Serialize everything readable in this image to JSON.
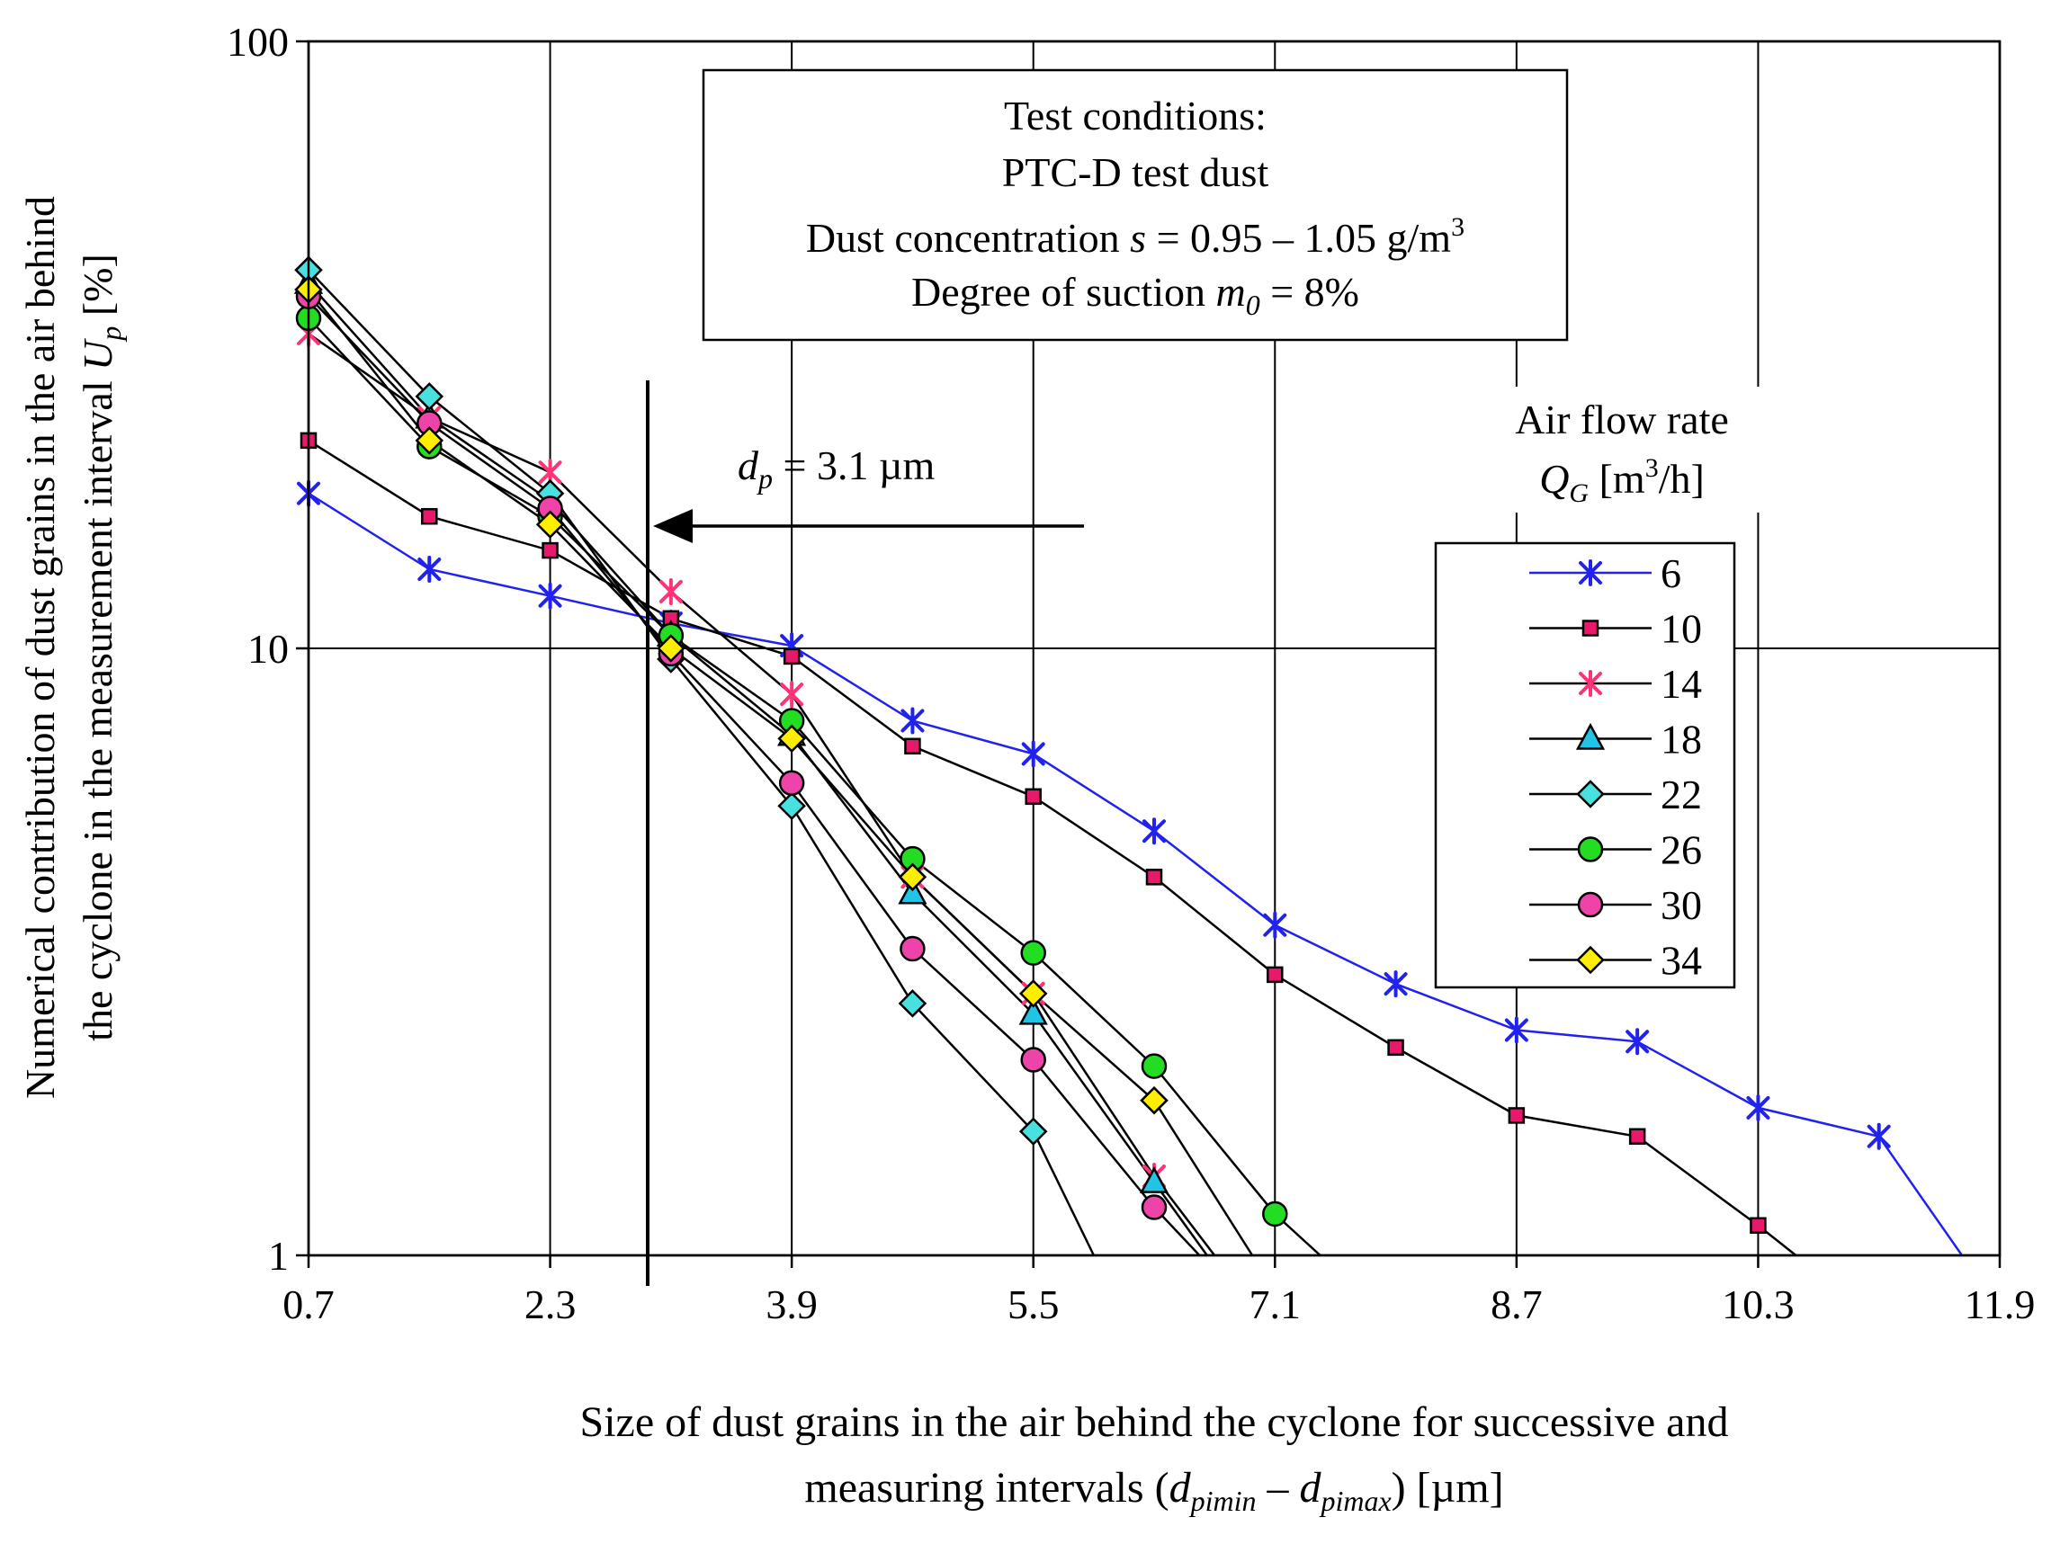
{
  "chart_data": {
    "type": "line",
    "y_scale": "log",
    "ylim": [
      1,
      100
    ],
    "xlim": [
      0.7,
      11.9
    ],
    "x_ticks": [
      "0.7",
      "2.3",
      "3.9",
      "5.5",
      "7.1",
      "8.7",
      "10.3",
      "11.9"
    ],
    "x_tick_values": [
      0.7,
      2.3,
      3.9,
      5.5,
      7.1,
      8.7,
      10.3,
      11.9
    ],
    "y_ticks": [
      "1",
      "10",
      "100"
    ],
    "y_tick_values": [
      1,
      10,
      100
    ],
    "ylabel_line1": "Numerical contribution of dust grains in the air behind",
    "ylabel_line2_prefix": "the cyclone in the measurement interval ",
    "ylabel_var": "U",
    "ylabel_sub": "p",
    "ylabel_unit": " [%]",
    "xlabel_line1": "Size of dust grains in the air behind the cyclone for successive and",
    "xlabel_line2_prefix": "measuring intervals (",
    "xlabel_var1": "d",
    "xlabel_sub1": "pimin",
    "xlabel_dash": " – ",
    "xlabel_var2": "d",
    "xlabel_sub2": "pimax",
    "xlabel_suffix": ") [µm]",
    "conditions": {
      "line1": "Test conditions:",
      "line2": "PTC-D test dust",
      "line3_prefix": "Dust concentration ",
      "line3_var": "s",
      "line3_value": " = 0.95 – 1.05 g/m",
      "line3_sup": "3",
      "line4_prefix": "Degree of suction ",
      "line4_var": "m",
      "line4_sub": "0",
      "line4_value": " = 8%"
    },
    "dp_marker": {
      "x": 3.1,
      "label_var": "d",
      "label_sub": "p",
      "label_value": " = 3.1 µm"
    },
    "legend_title_line1": "Air flow rate",
    "legend_title_var": "Q",
    "legend_title_sub": "G",
    "legend_title_unit": " [m",
    "legend_title_sup": "3",
    "legend_title_end": "/h]",
    "series": [
      {
        "name": "6",
        "marker": "star",
        "color": "#2222ee",
        "line_color": "#2222ee",
        "x": [
          0.7,
          1.5,
          2.3,
          3.1,
          3.9,
          4.7,
          5.5,
          6.3,
          7.1,
          7.9,
          8.7,
          9.5,
          10.3,
          11.1,
          11.65
        ],
        "y": [
          18,
          13.5,
          12.2,
          11.0,
          10.1,
          7.6,
          6.7,
          5.0,
          3.5,
          2.8,
          2.35,
          2.25,
          1.75,
          1.57,
          1.0
        ]
      },
      {
        "name": "10",
        "marker": "square",
        "color": "#e8196b",
        "line_color": "#000000",
        "x": [
          0.7,
          1.5,
          2.3,
          3.1,
          3.9,
          4.7,
          5.5,
          6.3,
          7.1,
          7.9,
          8.7,
          9.5,
          10.3,
          10.55
        ],
        "y": [
          22,
          16.5,
          14.5,
          11.2,
          9.7,
          6.9,
          5.7,
          4.2,
          2.9,
          2.2,
          1.7,
          1.57,
          1.12,
          1.0
        ]
      },
      {
        "name": "14",
        "marker": "star",
        "color": "#ff3377",
        "line_color": "#000000",
        "x": [
          0.7,
          1.5,
          2.3,
          3.1,
          3.9,
          4.7,
          5.5,
          6.3,
          6.7
        ],
        "y": [
          33,
          24,
          19.5,
          12.4,
          8.4,
          4.2,
          2.7,
          1.35,
          1.0
        ]
      },
      {
        "name": "18",
        "marker": "triangle",
        "color": "#22c4e6",
        "line_color": "#000000",
        "x": [
          0.7,
          1.5,
          2.3,
          3.1,
          3.9,
          4.7,
          5.5,
          6.3,
          6.65
        ],
        "y": [
          40,
          24,
          17.5,
          10.5,
          7.2,
          3.95,
          2.5,
          1.32,
          1.0
        ]
      },
      {
        "name": "22",
        "marker": "diamond",
        "color": "#49e0e0",
        "line_color": "#000000",
        "x": [
          0.7,
          1.5,
          2.3,
          3.1,
          3.9,
          4.7,
          5.5,
          5.9
        ],
        "y": [
          42,
          26,
          18,
          9.6,
          5.5,
          2.6,
          1.6,
          1.0
        ]
      },
      {
        "name": "26",
        "marker": "circle",
        "color": "#22dd22",
        "line_color": "#000000",
        "x": [
          0.7,
          1.5,
          2.3,
          3.1,
          3.9,
          4.7,
          5.5,
          6.3,
          7.1,
          7.4
        ],
        "y": [
          35,
          21.5,
          16.5,
          10.5,
          7.6,
          4.5,
          3.15,
          2.05,
          1.17,
          1.0
        ]
      },
      {
        "name": "30",
        "marker": "circle",
        "color": "#ee44aa",
        "line_color": "#000000",
        "x": [
          0.7,
          1.5,
          2.3,
          3.1,
          3.9,
          4.7,
          5.5,
          6.3,
          6.6
        ],
        "y": [
          38,
          23.5,
          17,
          9.8,
          6.0,
          3.2,
          2.1,
          1.2,
          1.0
        ]
      },
      {
        "name": "34",
        "marker": "diamond",
        "color": "#ffee00",
        "line_color": "#000000",
        "x": [
          0.7,
          1.5,
          2.3,
          3.1,
          3.9,
          4.7,
          5.5,
          6.3,
          6.95
        ],
        "y": [
          39,
          22,
          16,
          10.0,
          7.1,
          4.2,
          2.7,
          1.8,
          1.0
        ]
      }
    ]
  }
}
